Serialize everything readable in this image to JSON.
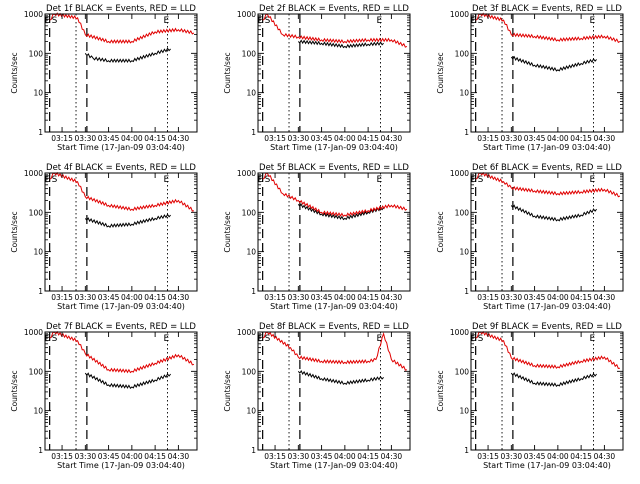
{
  "chart_data": [
    {
      "type": "line",
      "title": "Det 1f BLACK = Events, RED = LLD",
      "xlabel": "Start Time (17-Jan-09 03:04:40)",
      "ylabel": "Counts/sec",
      "ylog": true,
      "ylim": [
        1,
        1000
      ],
      "x_ticks": [
        "03:15",
        "03:30",
        "03:45",
        "04:00",
        "04:15",
        "04:30"
      ],
      "y_ticks": [
        "1",
        "10",
        "100",
        "1000"
      ],
      "markers": [
        "E",
        "S",
        "E"
      ],
      "series": [
        {
          "name": "Events",
          "color": "#000000",
          "points": [
            [
              "03:30",
              100
            ],
            [
              "03:35",
              75
            ],
            [
              "03:45",
              65
            ],
            [
              "04:00",
              65
            ],
            [
              "04:15",
              100
            ],
            [
              "04:25",
              130
            ]
          ]
        },
        {
          "name": "LLD",
          "color": "#e00000",
          "points": [
            [
              "03:07",
              700
            ],
            [
              "03:10",
              1000
            ],
            [
              "03:25",
              800
            ],
            [
              "03:30",
              300
            ],
            [
              "03:45",
              200
            ],
            [
              "04:00",
              200
            ],
            [
              "04:15",
              350
            ],
            [
              "04:30",
              400
            ],
            [
              "04:40",
              330
            ]
          ]
        }
      ]
    },
    {
      "type": "line",
      "title": "Det 2f BLACK = Events, RED = LLD",
      "xlabel": "Start Time (17-Jan-09 03:04:40)",
      "ylabel": "Counts/sec",
      "ylog": true,
      "ylim": [
        1,
        1000
      ],
      "x_ticks": [
        "03:15",
        "03:30",
        "03:45",
        "04:00",
        "04:15",
        "04:30"
      ],
      "y_ticks": [
        "1",
        "10",
        "100",
        "1000"
      ],
      "markers": [
        "E",
        "S",
        "E"
      ],
      "series": [
        {
          "name": "Events",
          "color": "#000000",
          "points": [
            [
              "03:30",
              200
            ],
            [
              "03:45",
              180
            ],
            [
              "04:00",
              150
            ],
            [
              "04:15",
              170
            ],
            [
              "04:25",
              180
            ]
          ]
        },
        {
          "name": "LLD",
          "color": "#e00000",
          "points": [
            [
              "03:07",
              700
            ],
            [
              "03:10",
              1000
            ],
            [
              "03:20",
              300
            ],
            [
              "03:30",
              260
            ],
            [
              "03:45",
              220
            ],
            [
              "04:00",
              200
            ],
            [
              "04:15",
              220
            ],
            [
              "04:30",
              220
            ],
            [
              "04:40",
              150
            ]
          ]
        }
      ]
    },
    {
      "type": "line",
      "title": "Det 3f BLACK = Events, RED = LLD",
      "xlabel": "Start Time (17-Jan-09 03:04:40)",
      "ylabel": "Counts/sec",
      "ylog": true,
      "ylim": [
        1,
        1000
      ],
      "x_ticks": [
        "03:15",
        "03:30",
        "03:45",
        "04:00",
        "04:15",
        "04:30"
      ],
      "y_ticks": [
        "1",
        "10",
        "100",
        "1000"
      ],
      "markers": [
        "E",
        "S",
        "E"
      ],
      "series": [
        {
          "name": "Events",
          "color": "#000000",
          "points": [
            [
              "03:30",
              80
            ],
            [
              "03:45",
              50
            ],
            [
              "04:00",
              38
            ],
            [
              "04:15",
              55
            ],
            [
              "04:25",
              70
            ]
          ]
        },
        {
          "name": "LLD",
          "color": "#e00000",
          "points": [
            [
              "03:07",
              700
            ],
            [
              "03:10",
              1000
            ],
            [
              "03:25",
              700
            ],
            [
              "03:30",
              300
            ],
            [
              "03:45",
              270
            ],
            [
              "04:00",
              220
            ],
            [
              "04:15",
              240
            ],
            [
              "04:30",
              270
            ],
            [
              "04:40",
              200
            ]
          ]
        }
      ]
    },
    {
      "type": "line",
      "title": "Det 4f BLACK = Events, RED = LLD",
      "xlabel": "Start Time (17-Jan-09 03:04:40)",
      "ylabel": "Counts/sec",
      "ylog": true,
      "ylim": [
        1,
        1000
      ],
      "x_ticks": [
        "03:15",
        "03:30",
        "03:45",
        "04:00",
        "04:15",
        "04:30"
      ],
      "y_ticks": [
        "1",
        "10",
        "100",
        "1000"
      ],
      "markers": [
        "E",
        "S",
        "E"
      ],
      "series": [
        {
          "name": "Events",
          "color": "#000000",
          "points": [
            [
              "03:30",
              70
            ],
            [
              "03:45",
              45
            ],
            [
              "04:00",
              50
            ],
            [
              "04:15",
              70
            ],
            [
              "04:25",
              85
            ]
          ]
        },
        {
          "name": "LLD",
          "color": "#e00000",
          "points": [
            [
              "03:07",
              700
            ],
            [
              "03:10",
              1000
            ],
            [
              "03:25",
              600
            ],
            [
              "03:30",
              250
            ],
            [
              "03:45",
              150
            ],
            [
              "04:00",
              120
            ],
            [
              "04:15",
              150
            ],
            [
              "04:30",
              200
            ],
            [
              "04:40",
              110
            ]
          ]
        }
      ]
    },
    {
      "type": "line",
      "title": "Det 5f BLACK = Events, RED = LLD",
      "xlabel": "Start Time (17-Jan-09 03:04:40)",
      "ylabel": "Counts/sec",
      "ylog": true,
      "ylim": [
        1,
        1000
      ],
      "x_ticks": [
        "03:15",
        "03:30",
        "03:45",
        "04:00",
        "04:15",
        "04:30"
      ],
      "y_ticks": [
        "1",
        "10",
        "100",
        "1000"
      ],
      "markers": [
        "E",
        "S",
        "E"
      ],
      "series": [
        {
          "name": "Events",
          "color": "#000000",
          "points": [
            [
              "03:30",
              160
            ],
            [
              "03:45",
              90
            ],
            [
              "04:00",
              70
            ],
            [
              "04:15",
              100
            ],
            [
              "04:25",
              130
            ]
          ]
        },
        {
          "name": "LLD",
          "color": "#e00000",
          "points": [
            [
              "03:07",
              700
            ],
            [
              "03:10",
              1000
            ],
            [
              "03:20",
              300
            ],
            [
              "03:30",
              200
            ],
            [
              "03:45",
              100
            ],
            [
              "04:00",
              85
            ],
            [
              "04:15",
              110
            ],
            [
              "04:30",
              150
            ],
            [
              "04:40",
              120
            ]
          ]
        }
      ]
    },
    {
      "type": "line",
      "title": "Det 6f BLACK = Events, RED = LLD",
      "xlabel": "Start Time (17-Jan-09 03:04:40)",
      "ylabel": "Counts/sec",
      "ylog": true,
      "ylim": [
        1,
        1000
      ],
      "x_ticks": [
        "03:15",
        "03:30",
        "03:45",
        "04:00",
        "04:15",
        "04:30"
      ],
      "y_ticks": [
        "1",
        "10",
        "100",
        "1000"
      ],
      "markers": [
        "E",
        "S",
        "E"
      ],
      "series": [
        {
          "name": "Events",
          "color": "#000000",
          "points": [
            [
              "03:30",
              150
            ],
            [
              "03:45",
              80
            ],
            [
              "04:00",
              65
            ],
            [
              "04:15",
              85
            ],
            [
              "04:25",
              120
            ]
          ]
        },
        {
          "name": "LLD",
          "color": "#e00000",
          "points": [
            [
              "03:07",
              700
            ],
            [
              "03:10",
              1000
            ],
            [
              "03:25",
              600
            ],
            [
              "03:30",
              420
            ],
            [
              "03:45",
              350
            ],
            [
              "04:00",
              300
            ],
            [
              "04:15",
              330
            ],
            [
              "04:30",
              380
            ],
            [
              "04:40",
              260
            ]
          ]
        }
      ]
    },
    {
      "type": "line",
      "title": "Det 7f BLACK = Events, RED = LLD",
      "xlabel": "Start Time (17-Jan-09 03:04:40)",
      "ylabel": "Counts/sec",
      "ylog": true,
      "ylim": [
        1,
        1000
      ],
      "x_ticks": [
        "03:15",
        "03:30",
        "03:45",
        "04:00",
        "04:15",
        "04:30"
      ],
      "y_ticks": [
        "1",
        "10",
        "100",
        "1000"
      ],
      "markers": [
        "E",
        "S",
        "E"
      ],
      "series": [
        {
          "name": "Events",
          "color": "#000000",
          "points": [
            [
              "03:30",
              90
            ],
            [
              "03:45",
              45
            ],
            [
              "04:00",
              40
            ],
            [
              "04:15",
              60
            ],
            [
              "04:25",
              85
            ]
          ]
        },
        {
          "name": "LLD",
          "color": "#e00000",
          "points": [
            [
              "03:07",
              700
            ],
            [
              "03:10",
              1000
            ],
            [
              "03:25",
              600
            ],
            [
              "03:30",
              280
            ],
            [
              "03:45",
              110
            ],
            [
              "04:00",
              100
            ],
            [
              "04:15",
              160
            ],
            [
              "04:30",
              260
            ],
            [
              "04:40",
              150
            ]
          ]
        }
      ]
    },
    {
      "type": "line",
      "title": "Det 8f BLACK = Events, RED = LLD",
      "xlabel": "Start Time (17-Jan-09 03:04:40)",
      "ylabel": "Counts/sec",
      "ylog": true,
      "ylim": [
        1,
        1000
      ],
      "x_ticks": [
        "03:15",
        "03:30",
        "03:45",
        "04:00",
        "04:15",
        "04:30"
      ],
      "y_ticks": [
        "1",
        "10",
        "100",
        "1000"
      ],
      "markers": [
        "E",
        "S",
        "E"
      ],
      "series": [
        {
          "name": "Events",
          "color": "#000000",
          "points": [
            [
              "03:30",
              100
            ],
            [
              "03:45",
              65
            ],
            [
              "04:00",
              50
            ],
            [
              "04:15",
              60
            ],
            [
              "04:25",
              70
            ]
          ]
        },
        {
          "name": "LLD",
          "color": "#e00000",
          "points": [
            [
              "03:07",
              700
            ],
            [
              "03:10",
              1000
            ],
            [
              "03:25",
              400
            ],
            [
              "03:30",
              230
            ],
            [
              "03:45",
              180
            ],
            [
              "04:00",
              170
            ],
            [
              "04:15",
              180
            ],
            [
              "04:20",
              200
            ],
            [
              "04:25",
              900
            ],
            [
              "04:30",
              200
            ],
            [
              "04:40",
              110
            ]
          ]
        }
      ]
    },
    {
      "type": "line",
      "title": "Det 9f BLACK = Events, RED = LLD",
      "xlabel": "Start Time (17-Jan-09 03:04:40)",
      "ylabel": "Counts/sec",
      "ylog": true,
      "ylim": [
        1,
        1000
      ],
      "x_ticks": [
        "03:15",
        "03:30",
        "03:45",
        "04:00",
        "04:15",
        "04:30"
      ],
      "y_ticks": [
        "1",
        "10",
        "100",
        "1000"
      ],
      "markers": [
        "E",
        "S",
        "E"
      ],
      "series": [
        {
          "name": "Events",
          "color": "#000000",
          "points": [
            [
              "03:30",
              90
            ],
            [
              "03:45",
              50
            ],
            [
              "04:00",
              45
            ],
            [
              "04:15",
              65
            ],
            [
              "04:25",
              85
            ]
          ]
        },
        {
          "name": "LLD",
          "color": "#e00000",
          "points": [
            [
              "03:07",
              700
            ],
            [
              "03:10",
              1000
            ],
            [
              "03:25",
              600
            ],
            [
              "03:30",
              220
            ],
            [
              "03:45",
              140
            ],
            [
              "04:00",
              130
            ],
            [
              "04:15",
              180
            ],
            [
              "04:30",
              230
            ],
            [
              "04:40",
              120
            ]
          ]
        }
      ]
    }
  ]
}
